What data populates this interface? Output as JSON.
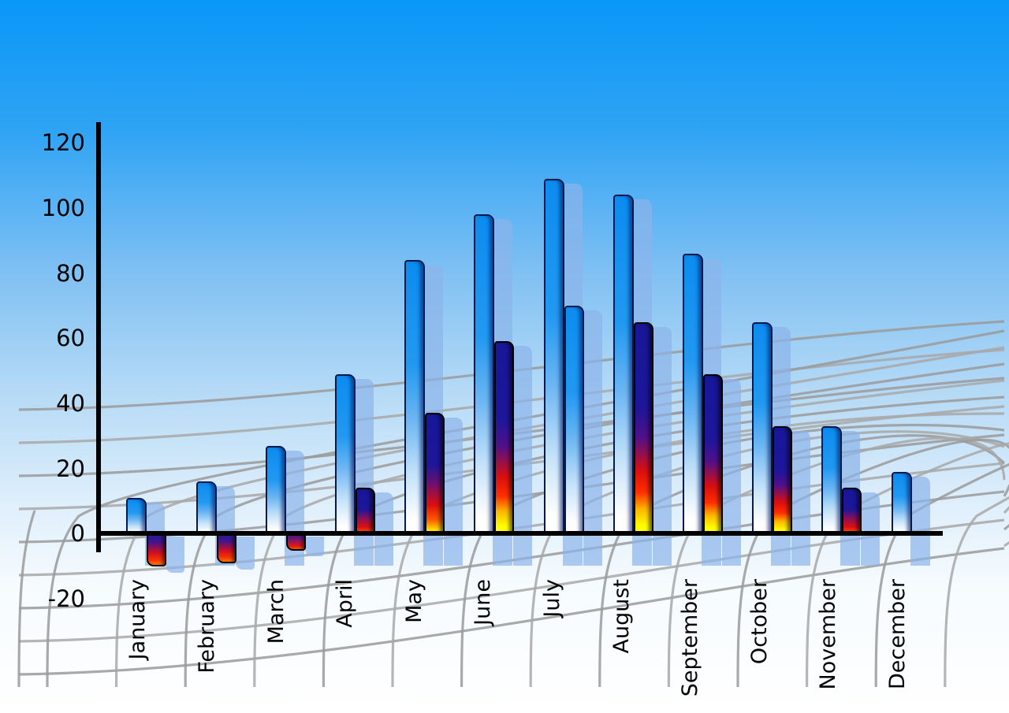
{
  "chart_data": {
    "type": "bar",
    "categories": [
      "January",
      "February",
      "March",
      "April",
      "May",
      "June",
      "July",
      "August",
      "September",
      "October",
      "November",
      "December"
    ],
    "series": [
      {
        "name": "primary-blue-bars",
        "color_style": "blue-gradient",
        "values": [
          11,
          16,
          27,
          49,
          84,
          98,
          109,
          104,
          86,
          65,
          33,
          19
        ]
      },
      {
        "name": "secondary-thermometer-bars",
        "color_style": "navy-red-yellow-gradient",
        "values": [
          -10,
          -9,
          -5,
          14,
          37,
          59,
          70,
          65,
          49,
          33,
          14,
          null
        ],
        "bar_styles": [
          "neg",
          "neg",
          "neg-small",
          "low",
          "mid",
          "full",
          "blue",
          "full",
          "full",
          "full",
          "low",
          null
        ]
      }
    ],
    "y_ticks": [
      120,
      100,
      80,
      60,
      40,
      20,
      0,
      -20
    ],
    "ylim": [
      -20,
      120
    ],
    "xlabel": "",
    "ylabel": "",
    "legend": "none",
    "grid": "curved-perspective-backdrop",
    "colors": {
      "sky_top": "#0997f8",
      "sky_bottom": "#ffffff",
      "bar_blue_top": "#0c8cf0",
      "bar_blue_bottom": "#ffffff",
      "thermo_navy": "#17179a",
      "thermo_red": "#e01010",
      "thermo_yellow": "#ffff00",
      "shadow_bar": "#a9c7ec",
      "axis": "#000000",
      "grid_line": "#9a9a9a",
      "text": "#000000"
    }
  }
}
